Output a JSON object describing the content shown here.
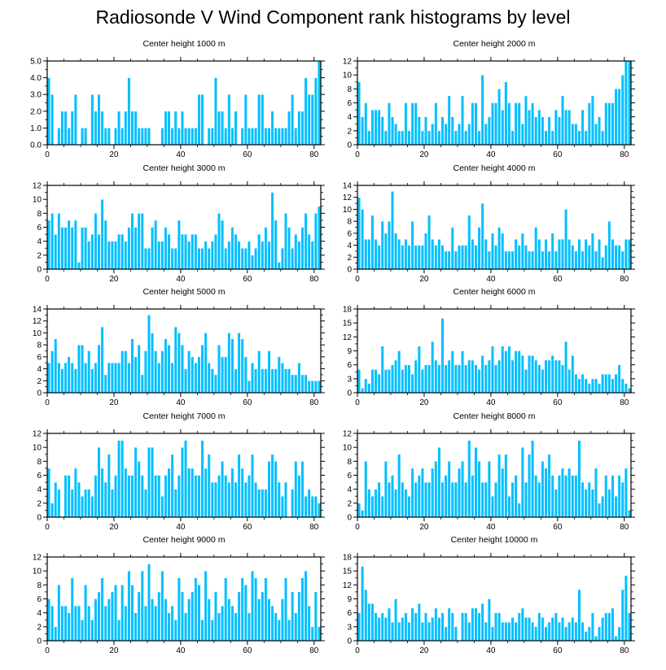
{
  "title": "Radiosonde V Wind Component rank histograms by level",
  "colors": {
    "bar": "#00bfff",
    "bar_edge": "#ffffff",
    "axis": "#000000"
  },
  "chart_data": [
    {
      "type": "bar",
      "title": "Center height 1000 m",
      "xlim": [
        0,
        82
      ],
      "ylim": [
        0,
        5
      ],
      "xticks": [
        "0",
        "20",
        "40",
        "60",
        "80"
      ],
      "yticks": [
        "0.0",
        "1.0",
        "2.0",
        "3.0",
        "4.0",
        "5.0"
      ],
      "values": [
        4,
        3,
        0,
        1,
        2,
        2,
        1,
        2,
        3,
        0,
        1,
        1,
        0,
        3,
        2,
        3,
        2,
        1,
        1,
        0,
        1,
        2,
        1,
        2,
        4,
        2,
        2,
        1,
        1,
        1,
        1,
        0,
        0,
        0,
        1,
        2,
        2,
        1,
        2,
        1,
        2,
        1,
        1,
        1,
        1,
        3,
        3,
        0,
        1,
        1,
        4,
        2,
        2,
        1,
        3,
        1,
        2,
        0,
        1,
        3,
        1,
        1,
        1,
        3,
        3,
        1,
        1,
        2,
        1,
        1,
        1,
        1,
        2,
        3,
        1,
        2,
        2,
        4,
        3,
        3,
        4,
        5
      ]
    },
    {
      "type": "bar",
      "title": "Center height 2000 m",
      "xlim": [
        0,
        82
      ],
      "ylim": [
        0,
        12
      ],
      "xticks": [
        "0",
        "20",
        "40",
        "60",
        "80"
      ],
      "yticks": [
        "0",
        "2",
        "4",
        "6",
        "8",
        "10",
        "12"
      ],
      "values": [
        9,
        4,
        6,
        2,
        5,
        5,
        5,
        4,
        2,
        6,
        4,
        3,
        2,
        2,
        6,
        2,
        6,
        6,
        4,
        2,
        4,
        2,
        3,
        6,
        2,
        4,
        3,
        7,
        4,
        2,
        3,
        7,
        2,
        3,
        6,
        6,
        2,
        10,
        3,
        4,
        6,
        6,
        8,
        5,
        9,
        6,
        2,
        6,
        6,
        3,
        7,
        5,
        6,
        4,
        5,
        4,
        2,
        4,
        2,
        5,
        4,
        7,
        5,
        5,
        3,
        3,
        2,
        5,
        2,
        6,
        7,
        3,
        4,
        2,
        6,
        6,
        6,
        8,
        8,
        10,
        12,
        12
      ]
    },
    {
      "type": "bar",
      "title": "Center height 3000 m",
      "xlim": [
        0,
        82
      ],
      "ylim": [
        0,
        12
      ],
      "xticks": [
        "0",
        "20",
        "40",
        "60",
        "80"
      ],
      "yticks": [
        "0",
        "2",
        "4",
        "6",
        "8",
        "10",
        "12"
      ],
      "values": [
        7,
        8,
        5,
        8,
        6,
        6,
        7,
        6,
        7,
        1,
        6,
        6,
        4,
        5,
        8,
        5,
        10,
        7,
        4,
        4,
        4,
        5,
        5,
        4,
        6,
        8,
        6,
        8,
        8,
        3,
        3,
        6,
        7,
        4,
        4,
        6,
        5,
        3,
        3,
        7,
        5,
        5,
        4,
        5,
        5,
        3,
        3,
        4,
        3,
        4,
        5,
        8,
        7,
        3,
        4,
        6,
        5,
        4,
        3,
        3,
        4,
        2,
        3,
        5,
        4,
        6,
        4,
        11,
        7,
        1,
        3,
        8,
        6,
        3,
        5,
        4,
        6,
        8,
        5,
        4,
        8,
        9
      ]
    },
    {
      "type": "bar",
      "title": "Center height 4000 m",
      "xlim": [
        0,
        82
      ],
      "ylim": [
        0,
        14
      ],
      "xticks": [
        "0",
        "20",
        "40",
        "60",
        "80"
      ],
      "yticks": [
        "0",
        "2",
        "4",
        "6",
        "8",
        "10",
        "12",
        "14"
      ],
      "values": [
        12,
        10,
        5,
        5,
        9,
        5,
        4,
        8,
        6,
        8,
        13,
        6,
        5,
        4,
        5,
        4,
        8,
        4,
        4,
        4,
        6,
        9,
        5,
        4,
        5,
        4,
        3,
        3,
        7,
        3,
        4,
        4,
        4,
        9,
        5,
        4,
        7,
        11,
        5,
        3,
        6,
        4,
        7,
        6,
        3,
        3,
        3,
        5,
        4,
        6,
        4,
        3,
        3,
        7,
        5,
        3,
        5,
        3,
        6,
        3,
        5,
        5,
        10,
        5,
        4,
        3,
        5,
        3,
        5,
        4,
        6,
        3,
        5,
        2,
        4,
        8,
        5,
        4,
        4,
        3,
        5,
        5
      ]
    },
    {
      "type": "bar",
      "title": "Center height 5000 m",
      "xlim": [
        0,
        82
      ],
      "ylim": [
        0,
        14
      ],
      "xticks": [
        "0",
        "20",
        "40",
        "60",
        "80"
      ],
      "yticks": [
        "0",
        "2",
        "4",
        "6",
        "8",
        "10",
        "12",
        "14"
      ],
      "values": [
        5,
        7,
        9,
        5,
        4,
        5,
        6,
        5,
        4,
        8,
        8,
        5,
        7,
        4,
        5,
        8,
        11,
        3,
        5,
        5,
        5,
        5,
        7,
        7,
        5,
        9,
        6,
        8,
        3,
        7,
        13,
        10,
        7,
        5,
        7,
        9,
        8,
        5,
        11,
        10,
        8,
        4,
        7,
        6,
        5,
        6,
        8,
        10,
        5,
        4,
        3,
        8,
        6,
        6,
        10,
        9,
        4,
        10,
        9,
        6,
        2,
        5,
        4,
        7,
        4,
        4,
        7,
        4,
        4,
        6,
        5,
        4,
        4,
        3,
        3,
        5,
        3,
        3,
        2,
        2,
        2,
        2
      ]
    },
    {
      "type": "bar",
      "title": "Center height 6000 m",
      "xlim": [
        0,
        82
      ],
      "ylim": [
        0,
        18
      ],
      "xticks": [
        "0",
        "20",
        "40",
        "60",
        "80"
      ],
      "yticks": [
        "0",
        "3",
        "6",
        "9",
        "12",
        "15",
        "18"
      ],
      "values": [
        5,
        1,
        3,
        2,
        5,
        5,
        4,
        10,
        5,
        5,
        6,
        7,
        9,
        5,
        6,
        6,
        4,
        7,
        10,
        5,
        6,
        6,
        11,
        7,
        6,
        16,
        6,
        7,
        9,
        6,
        6,
        9,
        6,
        7,
        7,
        6,
        5,
        8,
        6,
        7,
        10,
        6,
        7,
        10,
        9,
        10,
        7,
        9,
        9,
        8,
        5,
        8,
        8,
        7,
        6,
        5,
        7,
        7,
        8,
        7,
        7,
        6,
        11,
        5,
        8,
        4,
        3,
        4,
        3,
        2,
        3,
        3,
        2,
        4,
        4,
        4,
        3,
        4,
        6,
        3,
        2,
        1
      ]
    },
    {
      "type": "bar",
      "title": "Center height 7000 m",
      "xlim": [
        0,
        82
      ],
      "ylim": [
        0,
        12
      ],
      "xticks": [
        "0",
        "20",
        "40",
        "60",
        "80"
      ],
      "yticks": [
        "0",
        "2",
        "4",
        "6",
        "8",
        "10",
        "12"
      ],
      "values": [
        7,
        2,
        5,
        4,
        0,
        6,
        6,
        4,
        7,
        5,
        3,
        4,
        4,
        3,
        6,
        10,
        7,
        5,
        9,
        4,
        6,
        11,
        11,
        7,
        6,
        6,
        10,
        8,
        6,
        4,
        10,
        10,
        6,
        6,
        3,
        6,
        7,
        9,
        4,
        6,
        10,
        11,
        7,
        7,
        6,
        6,
        11,
        7,
        9,
        5,
        5,
        6,
        8,
        6,
        5,
        7,
        5,
        9,
        7,
        5,
        6,
        9,
        5,
        4,
        4,
        4,
        8,
        9,
        8,
        5,
        3,
        5,
        0,
        4,
        8,
        6,
        8,
        3,
        4,
        3,
        3,
        2
      ]
    },
    {
      "type": "bar",
      "title": "Center height 8000 m",
      "xlim": [
        0,
        82
      ],
      "ylim": [
        0,
        12
      ],
      "xticks": [
        "0",
        "20",
        "40",
        "60",
        "80"
      ],
      "yticks": [
        "0",
        "2",
        "4",
        "6",
        "8",
        "10",
        "12"
      ],
      "values": [
        2,
        1,
        8,
        4,
        3,
        4,
        5,
        3,
        8,
        5,
        6,
        4,
        9,
        5,
        4,
        3,
        7,
        5,
        6,
        7,
        5,
        5,
        7,
        8,
        10,
        5,
        6,
        8,
        5,
        5,
        7,
        8,
        5,
        11,
        6,
        10,
        8,
        5,
        5,
        8,
        3,
        5,
        9,
        7,
        9,
        3,
        5,
        6,
        2,
        10,
        5,
        9,
        11,
        6,
        5,
        8,
        7,
        9,
        6,
        4,
        6,
        7,
        6,
        7,
        6,
        6,
        11,
        5,
        4,
        5,
        4,
        7,
        2,
        3,
        6,
        4,
        6,
        3,
        6,
        5,
        7,
        1
      ]
    },
    {
      "type": "bar",
      "title": "Center height 9000 m",
      "xlim": [
        0,
        82
      ],
      "ylim": [
        0,
        12
      ],
      "xticks": [
        "0",
        "20",
        "40",
        "60",
        "80"
      ],
      "yticks": [
        "0",
        "2",
        "4",
        "6",
        "8",
        "10",
        "12"
      ],
      "values": [
        6,
        5,
        2,
        8,
        5,
        5,
        4,
        9,
        5,
        5,
        3,
        8,
        5,
        3,
        6,
        7,
        9,
        5,
        6,
        7,
        8,
        3,
        8,
        5,
        10,
        8,
        4,
        7,
        10,
        5,
        11,
        6,
        5,
        7,
        10,
        6,
        4,
        5,
        3,
        9,
        7,
        4,
        6,
        7,
        9,
        8,
        3,
        10,
        6,
        3,
        7,
        4,
        5,
        9,
        6,
        5,
        4,
        7,
        9,
        8,
        4,
        10,
        9,
        6,
        7,
        9,
        6,
        5,
        4,
        3,
        6,
        9,
        3,
        7,
        4,
        7,
        9,
        10,
        5,
        2,
        7,
        2
      ]
    },
    {
      "type": "bar",
      "title": "Center height 10000 m",
      "xlim": [
        0,
        82
      ],
      "ylim": [
        0,
        18
      ],
      "xticks": [
        "0",
        "20",
        "40",
        "60",
        "80"
      ],
      "yticks": [
        "0",
        "3",
        "6",
        "9",
        "12",
        "15",
        "18"
      ],
      "values": [
        6,
        16,
        11,
        8,
        8,
        6,
        5,
        6,
        5,
        7,
        4,
        9,
        4,
        5,
        6,
        4,
        7,
        6,
        8,
        4,
        6,
        4,
        5,
        7,
        5,
        6,
        3,
        7,
        6,
        3,
        0,
        6,
        6,
        4,
        7,
        7,
        6,
        8,
        4,
        9,
        3,
        6,
        6,
        4,
        4,
        4,
        5,
        4,
        6,
        7,
        5,
        5,
        4,
        3,
        6,
        5,
        3,
        4,
        5,
        6,
        4,
        5,
        3,
        4,
        5,
        4,
        11,
        4,
        2,
        3,
        6,
        1,
        3,
        5,
        6,
        6,
        7,
        1,
        3,
        11,
        14,
        6
      ]
    }
  ]
}
